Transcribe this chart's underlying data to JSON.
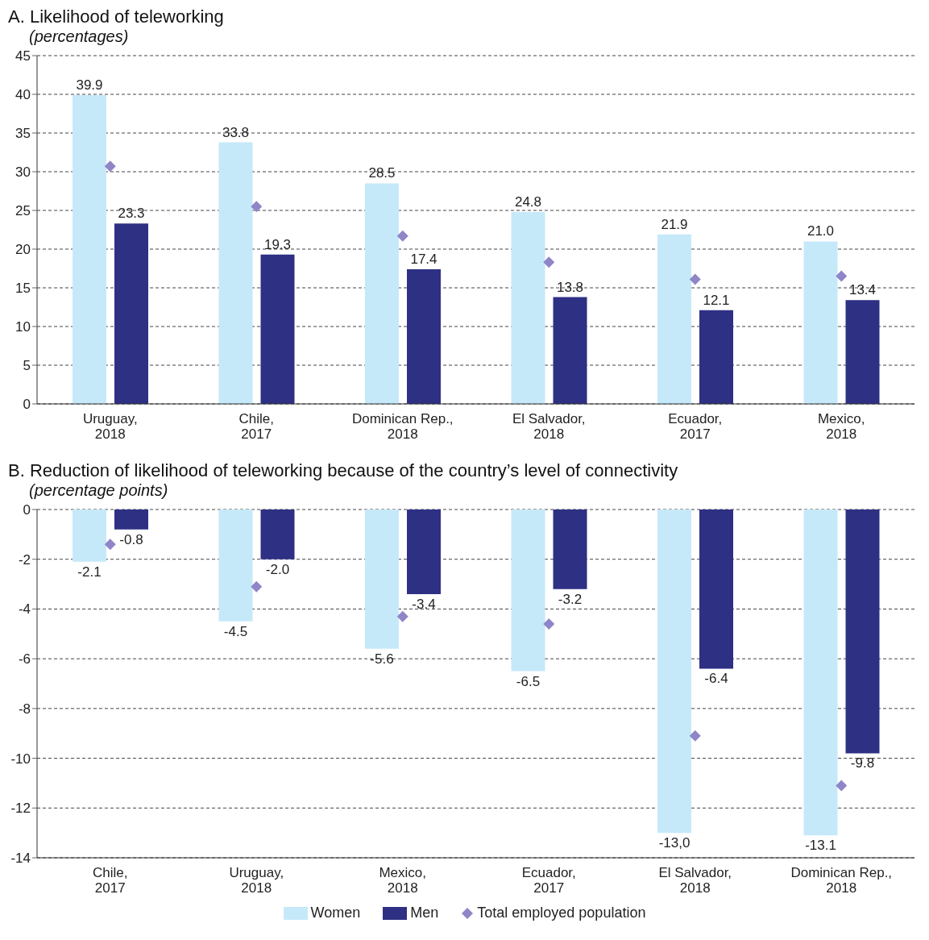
{
  "chart_data": [
    {
      "type": "bar",
      "title": "A. Likelihood of teleworking",
      "subtitle": "(percentages)",
      "categories": [
        "Uruguay,\n2018",
        "Chile,\n2017",
        "Dominican Rep.,\n2018",
        "El Salvador,\n2018",
        "Ecuador,\n2017",
        "Mexico,\n2018"
      ],
      "series": [
        {
          "color": "#c6e9f9",
          "values": [
            39.9,
            33.8,
            28.5,
            24.8,
            21.9,
            21.0
          ],
          "value_labels": [
            "39.9",
            "33.8",
            "28.5",
            "24.8",
            "21.9",
            "21.0"
          ]
        },
        {
          "color": "#2e3084",
          "values": [
            23.3,
            19.3,
            17.4,
            13.8,
            12.1,
            13.4
          ],
          "value_labels": [
            "23.3",
            "19.3",
            "17.4",
            "13.8",
            "12.1",
            "13.4"
          ]
        },
        {
          "type": "scatter",
          "marker": "diamond",
          "color": "#8f86c8",
          "values": [
            30.7,
            25.5,
            21.7,
            18.3,
            16.1,
            16.5
          ]
        }
      ],
      "ylim": [
        0,
        45
      ],
      "yticks": [
        0,
        5,
        10,
        15,
        20,
        25,
        30,
        35,
        40,
        45
      ],
      "grid": "y",
      "legend": false
    },
    {
      "type": "bar",
      "title": "B. Reduction of likelihood of teleworking because of the country’s level of connectivity",
      "subtitle": "(percentage points)",
      "categories": [
        "Chile,\n2017",
        "Uruguay,\n2018",
        "Mexico,\n2018",
        "Ecuador,\n2017",
        "El Salvador,\n2018",
        "Dominican Rep.,\n2018"
      ],
      "series": [
        {
          "name": "Women",
          "color": "#c6e9f9",
          "values": [
            -2.1,
            -4.5,
            -5.6,
            -6.5,
            -13.0,
            -13.1
          ],
          "value_labels": [
            "-2.1",
            "-4.5",
            "-5.6",
            "-6.5",
            "-13,0",
            "-13.1"
          ]
        },
        {
          "name": "Men",
          "color": "#2e3084",
          "values": [
            -0.8,
            -2.0,
            -3.4,
            -3.2,
            -6.4,
            -9.8
          ],
          "value_labels": [
            "-0.8",
            "-2.0",
            "-3.4",
            "-3.2",
            "-6.4",
            "-9.8"
          ]
        },
        {
          "name": "Total employed population",
          "type": "scatter",
          "marker": "diamond",
          "color": "#8f86c8",
          "values": [
            -1.4,
            -3.1,
            -4.3,
            -4.6,
            -9.1,
            -11.1
          ]
        }
      ],
      "ylim": [
        -14,
        0
      ],
      "yticks": [
        0,
        -2,
        -4,
        -6,
        -8,
        -10,
        -12,
        -14
      ],
      "grid": "y",
      "legend": "bottom"
    }
  ]
}
